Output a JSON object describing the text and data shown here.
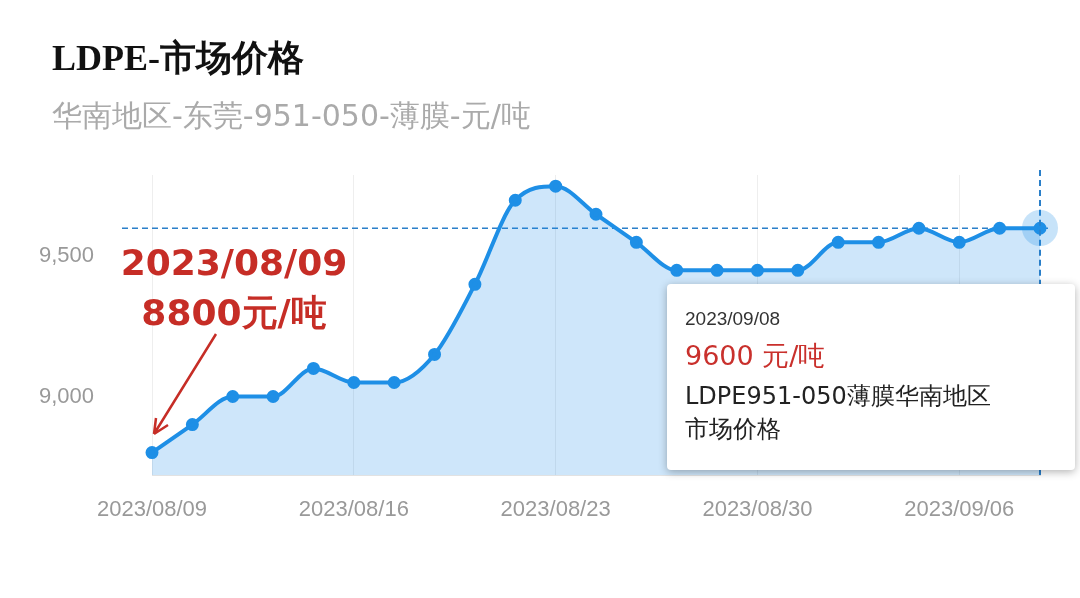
{
  "chart_data": {
    "type": "area",
    "title": "LDPE-市场价格",
    "subtitle": "华南地区-东莞-951-050-薄膜-元/吨",
    "categories": [
      "2023/08/09",
      null,
      null,
      null,
      null,
      "2023/08/16",
      null,
      null,
      null,
      null,
      "2023/08/23",
      null,
      null,
      null,
      null,
      "2023/08/30",
      null,
      null,
      null,
      null,
      "2023/09/06",
      null,
      null
    ],
    "series": [
      {
        "color": "#1e8fe6",
        "values": [
          8800,
          8900,
          9000,
          9000,
          9100,
          9050,
          9050,
          9150,
          9400,
          9700,
          9750,
          9650,
          9550,
          9450,
          9450,
          9450,
          9450,
          9550,
          9550,
          9600,
          9550,
          9600,
          9600
        ]
      }
    ],
    "ylim": [
      8720,
      9790
    ],
    "yticks": [
      {
        "value": 9000,
        "label": "9,000"
      },
      {
        "value": 9500,
        "label": "9,500"
      }
    ],
    "grid": "x",
    "legend": false,
    "marker": "circle",
    "line_style": "solid",
    "ref_lines": [
      {
        "axis": "y",
        "value": 9600,
        "color": "#2a7fc9",
        "line_style": "dashed"
      }
    ],
    "annotations": [
      "2023/08/09\n8800元/吨",
      "2023/09/08",
      "9600 元/吨",
      "LDPE951-050薄膜华南地区市场价格"
    ]
  }
}
